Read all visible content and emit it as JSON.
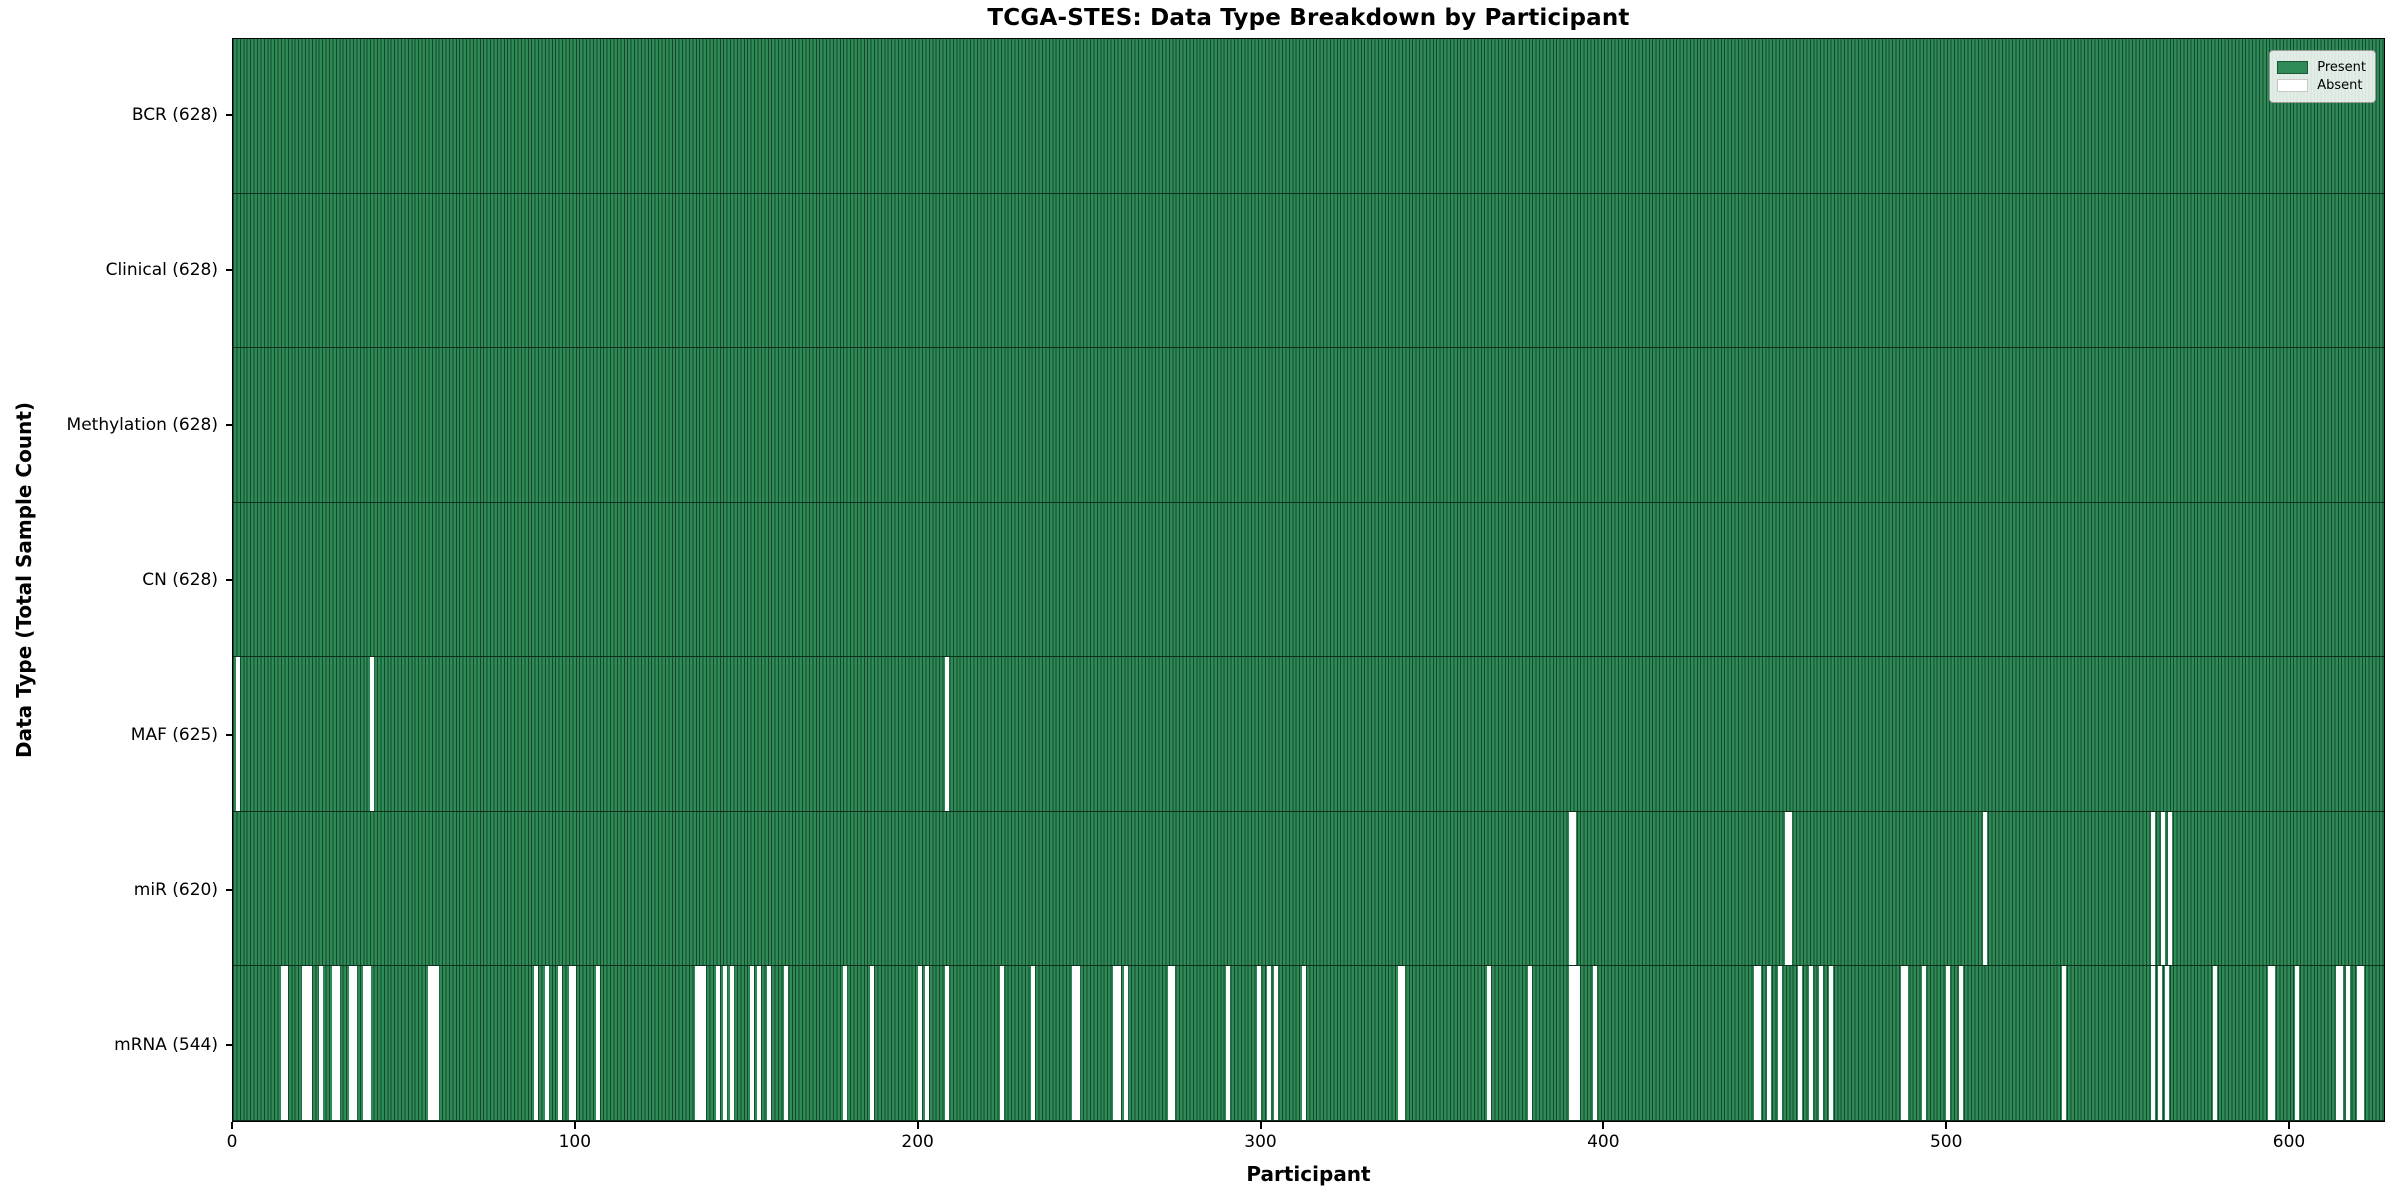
{
  "title": "TCGA-STES: Data Type Breakdown by Participant",
  "x_axis_label": "Participant",
  "y_axis_label": "Data Type (Total Sample Count)",
  "legend_items": [
    {
      "label": "Present",
      "color": "#2E8B57"
    },
    {
      "label": "Absent",
      "color": "#FFFFFF"
    }
  ],
  "colors": {
    "present": "#2E8B57",
    "cell_edge": "#16482C",
    "absent": "#FFFFFF",
    "axis": "#000000"
  },
  "chart_data": {
    "type": "heatmap",
    "title": "TCGA-STES: Data Type Breakdown by Participant",
    "xlabel": "Participant",
    "ylabel": "Data Type (Total Sample Count)",
    "n_participants": 628,
    "x_range": [
      0,
      628
    ],
    "x_ticks": [
      0,
      100,
      200,
      300,
      400,
      500,
      600
    ],
    "legend": [
      "Present",
      "Absent"
    ],
    "legend_position": "upper right",
    "grid": false,
    "rows": [
      {
        "label": "BCR (628)",
        "name": "BCR",
        "present_count": 628,
        "absent_participants": []
      },
      {
        "label": "Clinical (628)",
        "name": "Clinical",
        "present_count": 628,
        "absent_participants": []
      },
      {
        "label": "Methylation (628)",
        "name": "Methylation",
        "present_count": 628,
        "absent_participants": []
      },
      {
        "label": "CN (628)",
        "name": "CN",
        "present_count": 628,
        "absent_participants": []
      },
      {
        "label": "MAF (625)",
        "name": "MAF",
        "present_count": 625,
        "absent_participants": [
          1,
          40,
          208
        ]
      },
      {
        "label": "miR (620)",
        "name": "miR",
        "present_count": 620,
        "absent_participants": [
          390,
          391,
          453,
          454,
          511,
          560,
          563,
          565
        ]
      },
      {
        "label": "mRNA (544)",
        "name": "mRNA",
        "present_count": 544,
        "absent_participants": [
          14,
          15,
          20,
          21,
          22,
          25,
          29,
          30,
          34,
          35,
          38,
          39,
          57,
          58,
          59,
          88,
          91,
          95,
          98,
          99,
          106,
          135,
          136,
          137,
          141,
          143,
          145,
          151,
          153,
          156,
          161,
          178,
          186,
          200,
          202,
          208,
          224,
          233,
          245,
          246,
          257,
          258,
          260,
          273,
          274,
          290,
          299,
          302,
          304,
          312,
          340,
          341,
          366,
          378,
          390,
          391,
          392,
          397,
          444,
          445,
          448,
          451,
          457,
          460,
          463,
          466,
          487,
          488,
          493,
          500,
          504,
          534,
          560,
          562,
          564,
          578,
          594,
          595,
          602,
          614,
          615,
          617,
          620,
          621
        ]
      }
    ]
  }
}
